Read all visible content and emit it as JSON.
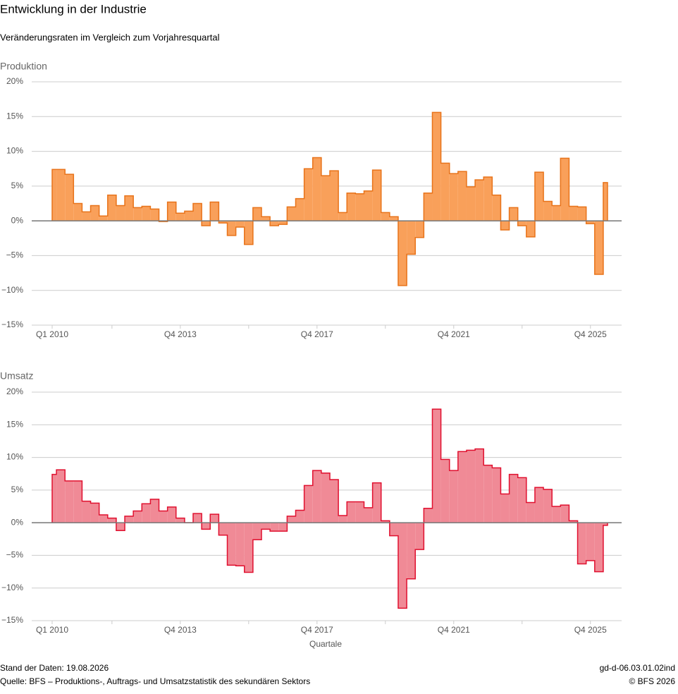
{
  "title": "Entwicklung in der Industrie",
  "subtitle": "Veränderungsraten im Vergleich zum Vorjahresquartal",
  "footer": {
    "left": [
      "Stand der Daten: 19.08.2026",
      "Quelle: BFS – Produktions-, Auftrags- und Umsatzstatistik des sekundären Sektors"
    ],
    "right": [
      "gd-d-06.03.01.02ind",
      "© BFS 2026"
    ]
  },
  "chart_data": [
    {
      "type": "step",
      "title": "Produktion",
      "categories": [
        "Q1 2010",
        null,
        null,
        null,
        null,
        null,
        null,
        null,
        null,
        null,
        null,
        null,
        null,
        null,
        null,
        "Q4 2013",
        null,
        null,
        null,
        null,
        null,
        null,
        null,
        null,
        null,
        null,
        null,
        null,
        null,
        null,
        null,
        "Q4 2017",
        null,
        null,
        null,
        null,
        null,
        null,
        null,
        null,
        null,
        null,
        null,
        null,
        null,
        null,
        null,
        "Q4 2021",
        null,
        null,
        null,
        null,
        null,
        null,
        null,
        null,
        null,
        null,
        null,
        null,
        null,
        null,
        null,
        "Q4 2025",
        null,
        null
      ],
      "series": [
        {
          "name": "Produktion",
          "color": "#e8731a",
          "fill": "#f9a05a",
          "values": [
            7.4,
            7.4,
            6.7,
            2.5,
            1.3,
            2.2,
            0.7,
            3.7,
            2.2,
            3.6,
            1.9,
            2.1,
            1.7,
            -0.1,
            2.7,
            1.1,
            1.4,
            2.5,
            -0.7,
            2.7,
            -0.3,
            -2.1,
            -0.9,
            -3.4,
            1.9,
            0.6,
            -0.7,
            -0.5,
            2.0,
            3.2,
            7.5,
            9.1,
            6.5,
            7.2,
            1.2,
            4.0,
            3.9,
            4.3,
            7.3,
            1.2,
            0.6,
            -9.3,
            -4.8,
            -2.4,
            4.0,
            15.6,
            8.3,
            6.8,
            7.1,
            4.9,
            5.9,
            6.3,
            3.7,
            -1.3,
            1.9,
            -0.7,
            -2.3,
            7.0,
            2.8,
            2.2,
            9.0,
            2.1,
            2.0,
            -0.4,
            -7.7,
            5.5
          ]
        }
      ],
      "ylim": [
        -15,
        20
      ],
      "yticks": [
        {
          "value": -15,
          "label": "−15%"
        },
        {
          "value": -10,
          "label": "−10%"
        },
        {
          "value": -5,
          "label": "−5%"
        },
        {
          "value": 0,
          "label": "0%"
        },
        {
          "value": 5,
          "label": "5%"
        },
        {
          "value": 10,
          "label": "10%"
        },
        {
          "value": 15,
          "label": "15%"
        },
        {
          "value": 20,
          "label": "20%"
        }
      ],
      "grid": true
    },
    {
      "type": "step",
      "title": "Umsatz",
      "x_label": "Quartale",
      "categories": [
        "Q1 2010",
        null,
        null,
        null,
        null,
        null,
        null,
        null,
        null,
        null,
        null,
        null,
        null,
        null,
        null,
        "Q4 2013",
        null,
        null,
        null,
        null,
        null,
        null,
        null,
        null,
        null,
        null,
        null,
        null,
        null,
        null,
        null,
        "Q4 2017",
        null,
        null,
        null,
        null,
        null,
        null,
        null,
        null,
        null,
        null,
        null,
        null,
        null,
        null,
        null,
        "Q4 2021",
        null,
        null,
        null,
        null,
        null,
        null,
        null,
        null,
        null,
        null,
        null,
        null,
        null,
        null,
        null,
        "Q4 2025",
        null,
        null
      ],
      "series": [
        {
          "name": "Umsatz",
          "color": "#e0102f",
          "fill": "#f08a96",
          "values": [
            7.4,
            8.1,
            6.4,
            6.4,
            3.3,
            3.0,
            1.2,
            0.7,
            -1.2,
            1.0,
            1.8,
            2.9,
            3.6,
            1.8,
            2.4,
            0.7,
            0.0,
            1.4,
            -1.0,
            1.3,
            -1.9,
            -6.5,
            -6.6,
            -7.6,
            -2.6,
            -1.0,
            -1.3,
            -1.3,
            1.0,
            1.9,
            5.7,
            8.0,
            7.6,
            6.6,
            1.1,
            3.2,
            3.2,
            2.3,
            6.1,
            0.3,
            -2.0,
            -13.1,
            -8.6,
            -4.1,
            2.2,
            17.4,
            9.7,
            8.0,
            10.9,
            11.1,
            11.3,
            8.8,
            8.4,
            4.4,
            7.4,
            6.9,
            3.1,
            5.4,
            5.1,
            2.5,
            2.7,
            0.3,
            -6.3,
            -5.8,
            -7.5,
            -0.4
          ]
        }
      ],
      "ylim": [
        -15,
        20
      ],
      "yticks": [
        {
          "value": -15,
          "label": "−15%"
        },
        {
          "value": -10,
          "label": "−10%"
        },
        {
          "value": -5,
          "label": "−5%"
        },
        {
          "value": 0,
          "label": "0%"
        },
        {
          "value": 5,
          "label": "5%"
        },
        {
          "value": 10,
          "label": "10%"
        },
        {
          "value": 15,
          "label": "15%"
        },
        {
          "value": 20,
          "label": "20%"
        }
      ],
      "grid": true
    }
  ]
}
